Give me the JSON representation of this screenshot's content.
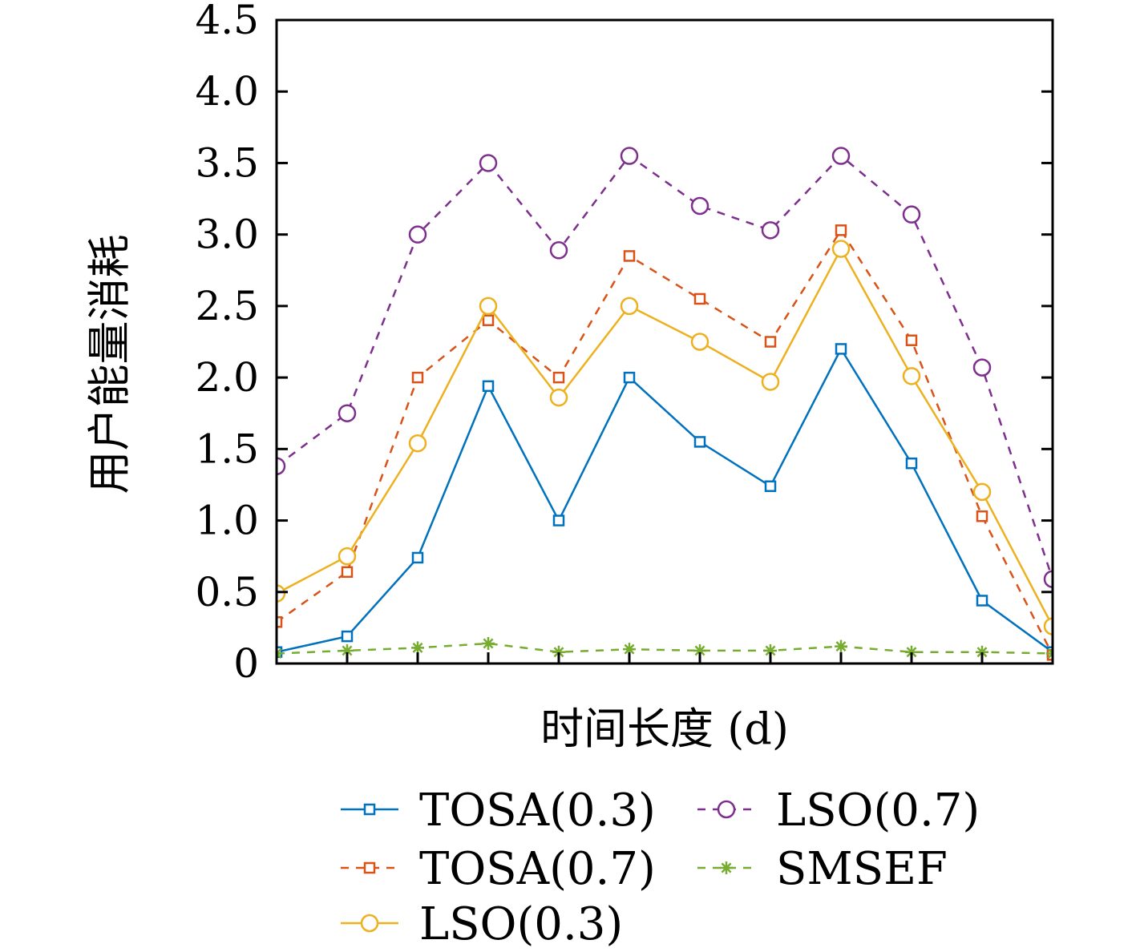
{
  "chart_data": {
    "type": "line",
    "xlabel": "时间长度 (d)",
    "ylabel": "用户能量消耗",
    "ylim": [
      0,
      4.5
    ],
    "xlim": [
      1,
      12
    ],
    "yticks": [
      0,
      0.5,
      1.0,
      1.5,
      2.0,
      2.5,
      3.0,
      3.5,
      4.0,
      4.5
    ],
    "ytick_labels": [
      "0",
      "0.5",
      "1.0",
      "1.5",
      "2.0",
      "2.5",
      "3.0",
      "3.5",
      "4.0",
      "4.5"
    ],
    "x": [
      1,
      2,
      3,
      4,
      5,
      6,
      7,
      8,
      9,
      10,
      11,
      12
    ],
    "grid": false,
    "legend_position": "bottom",
    "series": [
      {
        "name": "TOSA(0.3)",
        "color": "#0072BD",
        "marker": "square",
        "dash": "solid",
        "values": [
          0.08,
          0.19,
          0.74,
          1.94,
          1.0,
          2.0,
          1.55,
          1.24,
          2.2,
          1.4,
          0.44,
          0.08
        ]
      },
      {
        "name": "TOSA(0.7)",
        "color": "#D95319",
        "marker": "square",
        "dash": "dashed",
        "values": [
          0.29,
          0.64,
          2.0,
          2.4,
          2.0,
          2.85,
          2.55,
          2.25,
          3.03,
          2.26,
          1.03,
          0.06
        ]
      },
      {
        "name": "LSO(0.3)",
        "color": "#EDB120",
        "marker": "circle",
        "dash": "solid",
        "values": [
          0.49,
          0.75,
          1.54,
          2.5,
          1.86,
          2.5,
          2.25,
          1.97,
          2.9,
          2.01,
          1.2,
          0.26
        ]
      },
      {
        "name": "LSO(0.7)",
        "color": "#7E2F8E",
        "marker": "circle",
        "dash": "dashed",
        "values": [
          1.38,
          1.75,
          3.0,
          3.5,
          2.89,
          3.55,
          3.2,
          3.03,
          3.55,
          3.14,
          2.07,
          0.59
        ]
      },
      {
        "name": "SMSEF",
        "color": "#77AC30",
        "marker": "star",
        "dash": "dashed",
        "values": [
          0.07,
          0.09,
          0.11,
          0.14,
          0.08,
          0.1,
          0.09,
          0.09,
          0.12,
          0.08,
          0.08,
          0.07
        ]
      }
    ]
  }
}
